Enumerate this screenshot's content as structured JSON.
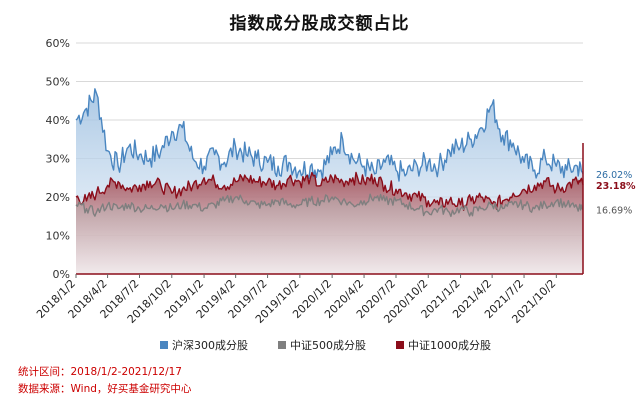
{
  "chart_data": {
    "type": "area",
    "title": "指数成分股成交额占比",
    "xlabel": "",
    "ylabel": "",
    "ylim": [
      0,
      60
    ],
    "y_ticks": [
      "0%",
      "10%",
      "20%",
      "30%",
      "40%",
      "50%",
      "60%"
    ],
    "x_ticks": [
      "2018/1/2",
      "2018/4/2",
      "2018/7/2",
      "2018/10/2",
      "2019/1/2",
      "2019/4/2",
      "2019/7/2",
      "2019/10/2",
      "2020/1/2",
      "2020/4/2",
      "2020/7/2",
      "2020/10/2",
      "2021/1/2",
      "2021/4/2",
      "2021/7/2",
      "2021/10/2"
    ],
    "grid": true,
    "legend_position": "bottom",
    "series": [
      {
        "name": "沪深300成分股",
        "color": "#4a86c0",
        "last_label": "26.02%",
        "x": [
          "2018/1/2",
          "2018/2/1",
          "2018/3/1",
          "2018/4/2",
          "2018/5/2",
          "2018/6/1",
          "2018/7/2",
          "2018/8/1",
          "2018/9/1",
          "2018/10/2",
          "2018/11/1",
          "2018/12/1",
          "2019/1/2",
          "2019/2/1",
          "2019/3/1",
          "2019/4/2",
          "2019/5/2",
          "2019/6/1",
          "2019/7/2",
          "2019/8/1",
          "2019/9/1",
          "2019/10/2",
          "2019/11/1",
          "2019/12/1",
          "2020/1/2",
          "2020/2/1",
          "2020/3/1",
          "2020/4/2",
          "2020/5/2",
          "2020/6/1",
          "2020/7/2",
          "2020/8/1",
          "2020/9/1",
          "2020/10/2",
          "2020/11/1",
          "2020/12/1",
          "2021/1/2",
          "2021/2/1",
          "2021/3/1",
          "2021/4/2",
          "2021/5/2",
          "2021/6/1",
          "2021/7/2",
          "2021/8/1",
          "2021/9/1",
          "2021/10/2",
          "2021/11/1",
          "2021/12/1",
          "2021/12/17"
        ],
        "values": [
          40,
          43,
          47,
          32,
          28,
          33,
          31,
          30,
          32,
          37,
          38,
          30,
          28,
          31,
          29,
          33,
          31,
          30,
          29,
          28,
          29,
          27,
          28,
          27,
          31,
          35,
          30,
          28,
          26,
          29,
          27,
          26,
          28,
          29,
          28,
          32,
          33,
          35,
          38,
          44,
          36,
          34,
          29,
          27,
          30,
          28,
          27,
          28,
          26.02
        ]
      },
      {
        "name": "中证500成分股",
        "color": "#7f7f7f",
        "last_label": "16.69%",
        "x": [
          "2018/1/2",
          "2018/2/1",
          "2018/3/1",
          "2018/4/2",
          "2018/5/2",
          "2018/6/1",
          "2018/7/2",
          "2018/8/1",
          "2018/9/1",
          "2018/10/2",
          "2018/11/1",
          "2018/12/1",
          "2019/1/2",
          "2019/2/1",
          "2019/3/1",
          "2019/4/2",
          "2019/5/2",
          "2019/6/1",
          "2019/7/2",
          "2019/8/1",
          "2019/9/1",
          "2019/10/2",
          "2019/11/1",
          "2019/12/1",
          "2020/1/2",
          "2020/2/1",
          "2020/3/1",
          "2020/4/2",
          "2020/5/2",
          "2020/6/1",
          "2020/7/2",
          "2020/8/1",
          "2020/9/1",
          "2020/10/2",
          "2020/11/1",
          "2020/12/1",
          "2021/1/2",
          "2021/2/1",
          "2021/3/1",
          "2021/4/2",
          "2021/5/2",
          "2021/6/1",
          "2021/7/2",
          "2021/8/1",
          "2021/9/1",
          "2021/10/2",
          "2021/11/1",
          "2021/12/1",
          "2021/12/17"
        ],
        "values": [
          18,
          17,
          16,
          18,
          17,
          18,
          17,
          17,
          18,
          17,
          18,
          18,
          17,
          18,
          19,
          20,
          19,
          18,
          18,
          19,
          18,
          18,
          19,
          19,
          20,
          19,
          18,
          19,
          20,
          19,
          19,
          18,
          17,
          16,
          17,
          16,
          17,
          16,
          17,
          18,
          17,
          18,
          18,
          17,
          18,
          19,
          18,
          17,
          16.69
        ]
      },
      {
        "name": "中证1000成分股",
        "color": "#8b0d1a",
        "last_label": "23.18%",
        "x": [
          "2018/1/2",
          "2018/2/1",
          "2018/3/1",
          "2018/4/2",
          "2018/5/2",
          "2018/6/1",
          "2018/7/2",
          "2018/8/1",
          "2018/9/1",
          "2018/10/2",
          "2018/11/1",
          "2018/12/1",
          "2019/1/2",
          "2019/2/1",
          "2019/3/1",
          "2019/4/2",
          "2019/5/2",
          "2019/6/1",
          "2019/7/2",
          "2019/8/1",
          "2019/9/1",
          "2019/10/2",
          "2019/11/1",
          "2019/12/1",
          "2020/1/2",
          "2020/2/1",
          "2020/3/1",
          "2020/4/2",
          "2020/5/2",
          "2020/6/1",
          "2020/7/2",
          "2020/8/1",
          "2020/9/1",
          "2020/10/2",
          "2020/11/1",
          "2020/12/1",
          "2021/1/2",
          "2021/2/1",
          "2021/3/1",
          "2021/4/2",
          "2021/5/2",
          "2021/6/1",
          "2021/7/2",
          "2021/8/1",
          "2021/9/1",
          "2021/10/2",
          "2021/11/1",
          "2021/12/1",
          "2021/12/17"
        ],
        "values": [
          20,
          19,
          21,
          23,
          24,
          22,
          23,
          24,
          23,
          21,
          22,
          23,
          25,
          24,
          23,
          24,
          25,
          24,
          24,
          23,
          25,
          24,
          25,
          23,
          25,
          24,
          25,
          24,
          25,
          23,
          22,
          21,
          20,
          19,
          18,
          19,
          18,
          19,
          20,
          18,
          19,
          21,
          22,
          23,
          24,
          22,
          23,
          24,
          23.18
        ]
      }
    ]
  },
  "footnotes": {
    "range": "统计区间：2018/1/2-2021/12/17",
    "source": "数据来源：Wind，好买基金研究中心"
  }
}
